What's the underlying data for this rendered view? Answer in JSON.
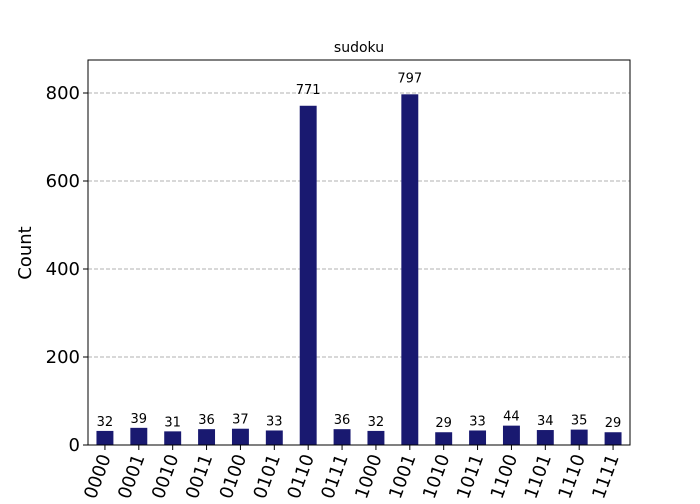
{
  "chart_data": {
    "type": "bar",
    "title": "sudoku",
    "ylabel": "Count",
    "xlabel": "",
    "categories": [
      "0000",
      "0001",
      "0010",
      "0011",
      "0100",
      "0101",
      "0110",
      "0111",
      "1000",
      "1001",
      "1010",
      "1011",
      "1100",
      "1101",
      "1110",
      "1111"
    ],
    "values": [
      32,
      39,
      31,
      36,
      37,
      33,
      771,
      36,
      32,
      797,
      29,
      33,
      44,
      34,
      35,
      29
    ],
    "ylim": [
      0,
      875
    ],
    "yticks": [
      0,
      200,
      400,
      600,
      800
    ],
    "grid": "horizontal-dashed",
    "colors": {
      "bar": "#191970",
      "grid": "#b0b0b0",
      "axis": "#000000"
    }
  }
}
